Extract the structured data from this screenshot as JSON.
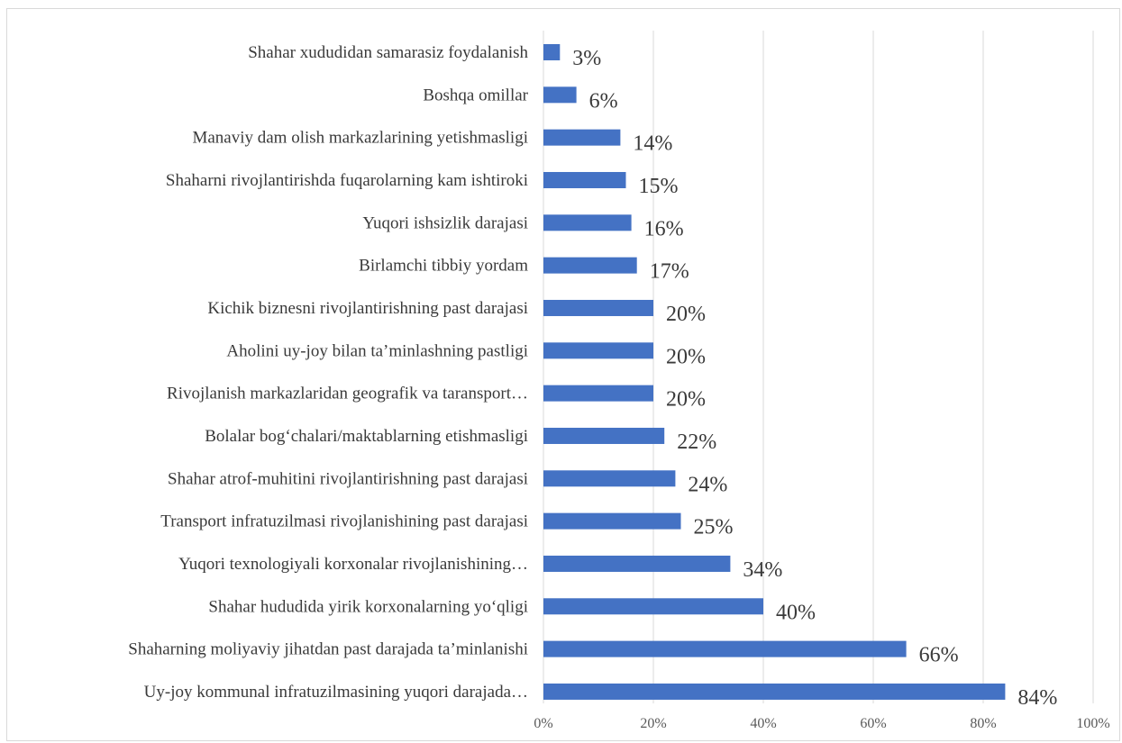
{
  "chart_data": {
    "type": "bar",
    "orientation": "horizontal",
    "title": "",
    "xlabel": "",
    "ylabel": "",
    "xlim": [
      0,
      100
    ],
    "x_ticks": [
      "0%",
      "20%",
      "40%",
      "60%",
      "80%",
      "100%"
    ],
    "grid": true,
    "legend": "none",
    "bar_color": "#4472c4",
    "gridline_color": "#d9d9d9",
    "categories": [
      "Shahar xududidan samarasiz foydalanish",
      "Boshqa omillar",
      "Manaviy dam olish markazlarining yetishmasligi",
      "Shaharni rivojlantirishda fuqarolarning kam ishtiroki",
      "Yuqori ishsizlik darajasi",
      "Birlamchi tibbiy yordam",
      "Kichik biznesni rivojlantirishning past darajasi",
      "Aholini uy-joy bilan ta’minlashning pastligi",
      "Rivojlanish markazlaridan geografik va taransport…",
      "Bolalar bog‘chalari/maktablarning etishmasligi",
      "Shahar atrof-muhitini rivojlantirishning past darajasi",
      "Transport infratuzilmasi rivojlanishining past darajasi",
      "Yuqori texnologiyali korxonalar rivojlanishining…",
      "Shahar hududida yirik korxonalarning yo‘qligi",
      "Shaharning moliyaviy jihatdan past darajada ta’minlanishi",
      "Uy-joy kommunal infratuzilmasining yuqori darajada…"
    ],
    "values": [
      3,
      6,
      14,
      15,
      16,
      17,
      20,
      20,
      20,
      22,
      24,
      25,
      34,
      40,
      66,
      84
    ],
    "data_labels": [
      "3%",
      "6%",
      "14%",
      "15%",
      "16%",
      "17%",
      "20%",
      "20%",
      "20%",
      "22%",
      "24%",
      "25%",
      "34%",
      "40%",
      "66%",
      "84%"
    ]
  }
}
